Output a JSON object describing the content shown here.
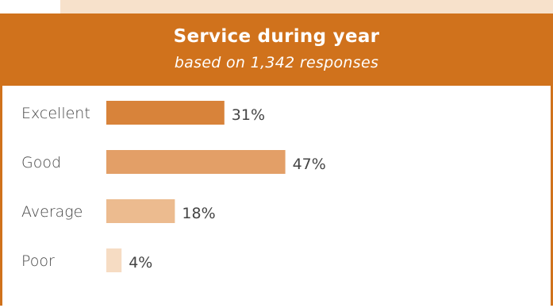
{
  "chart_data": {
    "type": "bar",
    "orientation": "horizontal",
    "title": "Service during year",
    "subtitle": "based on 1,342 responses",
    "categories": [
      "Excellent",
      "Good",
      "Average",
      "Poor"
    ],
    "values": [
      31,
      47,
      18,
      4
    ],
    "value_labels": [
      "31%",
      "47%",
      "18%",
      "4%"
    ],
    "unit": "%",
    "bar_colors": [
      "#d8833a",
      "#e39f67",
      "#ecbb8f",
      "#f6dcc3"
    ],
    "header_color": "#d0721c",
    "grid": false,
    "legend": "none"
  }
}
